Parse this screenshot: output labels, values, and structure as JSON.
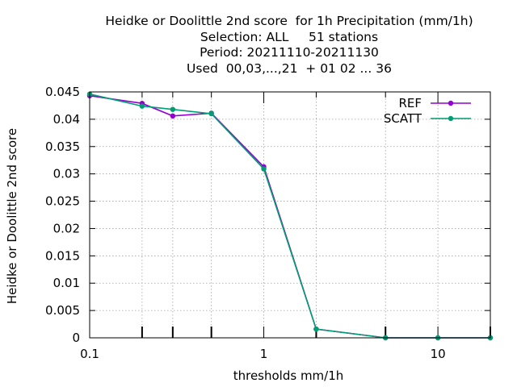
{
  "chart_data": {
    "type": "line",
    "title_lines": [
      "Heidke or Doolittle 2nd score  for 1h Precipitation (mm/1h)",
      "Selection: ALL     51 stations",
      "Period: 20211110-20211130",
      "Used  00,03,...,21  + 01 02 ... 36"
    ],
    "xlabel": "thresholds mm/1h",
    "ylabel": "Heidke or Doolittle 2nd score",
    "x_scale": "log",
    "xlim": [
      0.1,
      20
    ],
    "ylim": [
      0,
      0.045
    ],
    "x_ticks": [
      {
        "value": 0.1,
        "label": "0.1"
      },
      {
        "value": 1,
        "label": "1"
      },
      {
        "value": 10,
        "label": "10"
      }
    ],
    "x_minor_ticks": [
      0.2,
      0.3,
      0.5,
      2,
      5,
      20
    ],
    "y_ticks": [
      {
        "value": 0,
        "label": "0"
      },
      {
        "value": 0.005,
        "label": "0.005"
      },
      {
        "value": 0.01,
        "label": "0.01"
      },
      {
        "value": 0.015,
        "label": "0.015"
      },
      {
        "value": 0.02,
        "label": "0.02"
      },
      {
        "value": 0.025,
        "label": "0.025"
      },
      {
        "value": 0.03,
        "label": "0.03"
      },
      {
        "value": 0.035,
        "label": "0.035"
      },
      {
        "value": 0.04,
        "label": "0.04"
      },
      {
        "value": 0.045,
        "label": "0.045"
      }
    ],
    "grid": true,
    "legend_position": "top-right",
    "x": [
      0.1,
      0.2,
      0.3,
      0.5,
      1,
      2,
      5,
      10,
      20
    ],
    "series": [
      {
        "name": "REF",
        "color": "#9400d3",
        "values": [
          0.0443,
          0.0429,
          0.0406,
          0.0411,
          0.0313,
          0.0016,
          0.0,
          0.0,
          0.0
        ]
      },
      {
        "name": "SCATT",
        "color": "#009e73",
        "values": [
          0.0446,
          0.0424,
          0.0418,
          0.041,
          0.0309,
          0.0016,
          0.0,
          0.0,
          0.0
        ]
      }
    ]
  }
}
